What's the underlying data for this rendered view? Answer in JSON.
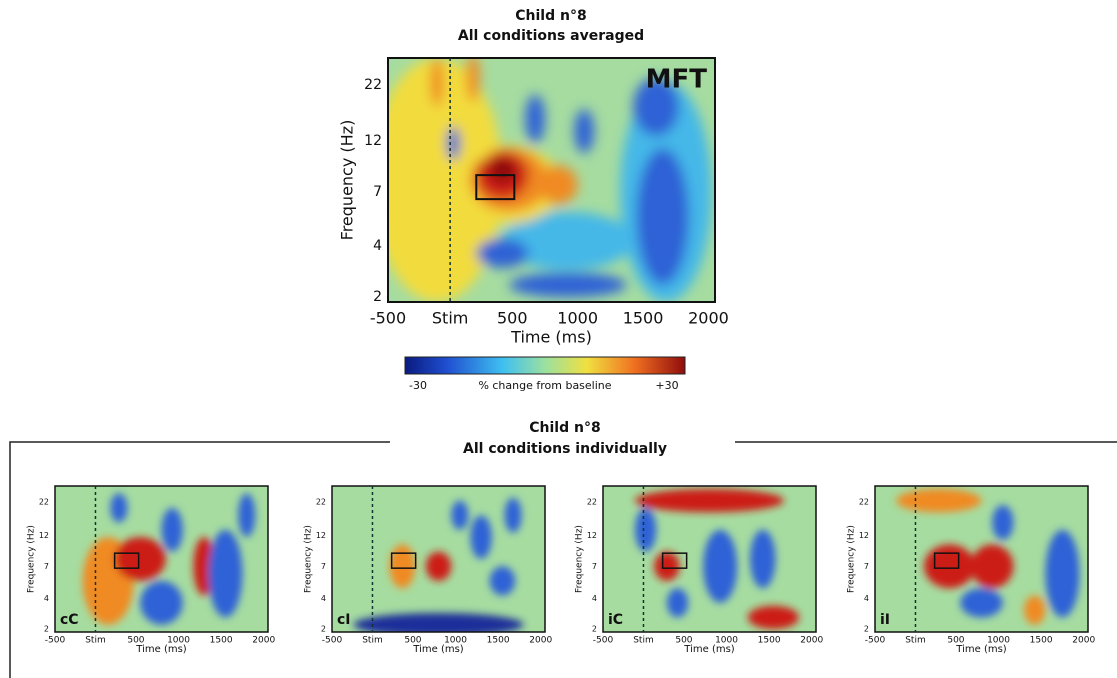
{
  "top": {
    "title": [
      "Child n°8",
      "All conditions averaged"
    ],
    "panel_label": "MFT",
    "ylabel": "Frequency (Hz)",
    "xlabel": "Time (ms)",
    "yticks": [
      "22",
      "12",
      "7",
      "4",
      "2"
    ],
    "xticks": [
      "-500",
      "Stim",
      "500",
      "1000",
      "1500",
      "2000"
    ],
    "colorbar": {
      "min": "-30",
      "label": "% change from baseline",
      "max": "+30"
    }
  },
  "bottom": {
    "title": [
      "Child n°8",
      "All conditions individually"
    ],
    "ylabel": "Frequency (Hz)",
    "xlabel": "Time (ms)",
    "yticks": [
      "22",
      "12",
      "7",
      "4",
      "2"
    ],
    "xticks": [
      "-500",
      "Stim",
      "500",
      "1000",
      "1500",
      "2000"
    ],
    "panels": [
      {
        "label": "cC"
      },
      {
        "label": "cI"
      },
      {
        "label": "iC"
      },
      {
        "label": "iI"
      }
    ]
  }
}
